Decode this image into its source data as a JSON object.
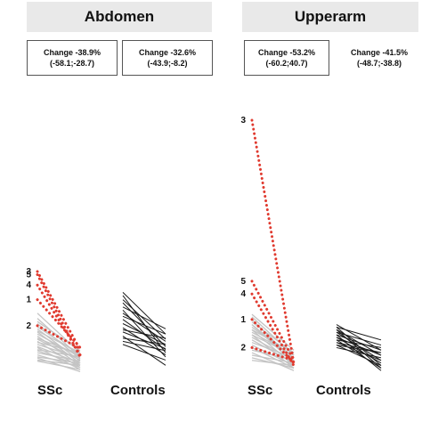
{
  "panels": [
    {
      "title": "Abdomen",
      "change_ssc": {
        "line1": "Change -38.9%",
        "line2": "(-58.1;-28.7)"
      },
      "change_controls": {
        "line1": "Change -32.6%",
        "line2": "(-43.9;-8.2)"
      },
      "group_ssc": "SSc",
      "group_controls": "Controls"
    },
    {
      "title": "Upperarm",
      "change_ssc": {
        "line1": "Change -53.2%",
        "line2": "(-60.2;40.7)"
      },
      "change_controls": {
        "line1": "Change -41.5%",
        "line2": "(-48.7;-38.8)"
      },
      "group_ssc": "SSc",
      "group_controls": "Controls"
    }
  ],
  "colors": {
    "highlight": "#e03a2f",
    "ssc_grey": "#c4c4c4",
    "controls": "#1a1a1a",
    "header_bg": "#e9e9e9"
  },
  "chart_data": [
    {
      "type": "line",
      "panel": "Abdomen",
      "ylim": [
        0,
        100
      ],
      "groups": [
        {
          "name": "SSc",
          "labeled": [
            {
              "label": "3",
              "start": 100,
              "end": 25
            },
            {
              "label": "5",
              "start": 97,
              "end": 18
            },
            {
              "label": "4",
              "start": 87,
              "end": 20
            },
            {
              "label": "1",
              "start": 73,
              "end": 27
            },
            {
              "label": "2",
              "start": 48,
              "end": 26
            }
          ],
          "others": [
            [
              60,
              22
            ],
            [
              55,
              18
            ],
            [
              52,
              24
            ],
            [
              50,
              16
            ],
            [
              47,
              20
            ],
            [
              45,
              14
            ],
            [
              43,
              22
            ],
            [
              42,
              12
            ],
            [
              40,
              18
            ],
            [
              38,
              10
            ],
            [
              36,
              20
            ],
            [
              35,
              15
            ],
            [
              33,
              8
            ],
            [
              32,
              22
            ],
            [
              30,
              17
            ],
            [
              28,
              12
            ],
            [
              27,
              6
            ],
            [
              25,
              18
            ],
            [
              24,
              10
            ],
            [
              22,
              14
            ],
            [
              20,
              8
            ],
            [
              18,
              12
            ],
            [
              17,
              4
            ],
            [
              15,
              10
            ],
            [
              14,
              6
            ]
          ]
        },
        {
          "name": "Controls",
          "pairs": [
            [
              80,
              40
            ],
            [
              77,
              22
            ],
            [
              73,
              35
            ],
            [
              70,
              28
            ],
            [
              66,
              45
            ],
            [
              63,
              18
            ],
            [
              60,
              33
            ],
            [
              57,
              40
            ],
            [
              54,
              25
            ],
            [
              50,
              30
            ],
            [
              46,
              20
            ],
            [
              44,
              36
            ],
            [
              42,
              26
            ],
            [
              38,
              10
            ],
            [
              36,
              30
            ],
            [
              33,
              24
            ],
            [
              30,
              15
            ]
          ]
        }
      ]
    },
    {
      "type": "line",
      "panel": "Upperarm",
      "ylim": [
        0,
        100
      ],
      "groups": [
        {
          "name": "SSc",
          "labeled": [
            {
              "label": "3",
              "start": 100,
              "end": 5
            },
            {
              "label": "5",
              "start": 37,
              "end": 6
            },
            {
              "label": "4",
              "start": 32,
              "end": 4
            },
            {
              "label": "1",
              "start": 22,
              "end": 5
            },
            {
              "label": "2",
              "start": 11,
              "end": 6
            }
          ],
          "others": [
            [
              24,
              10
            ],
            [
              23,
              8
            ],
            [
              22,
              6
            ],
            [
              21,
              9
            ],
            [
              20,
              5
            ],
            [
              19,
              7
            ],
            [
              18,
              4
            ],
            [
              17,
              8
            ],
            [
              16,
              3
            ],
            [
              15,
              6
            ],
            [
              14,
              5
            ],
            [
              13,
              7
            ],
            [
              12,
              4
            ],
            [
              11,
              3
            ],
            [
              10,
              6
            ],
            [
              9,
              2
            ],
            [
              8,
              5
            ],
            [
              7,
              3
            ],
            [
              6,
              4
            ],
            [
              18,
              9
            ],
            [
              20,
              7
            ],
            [
              16,
              8
            ]
          ]
        },
        {
          "name": "Controls",
          "pairs": [
            [
              20,
              10
            ],
            [
              19,
              4
            ],
            [
              19,
              14
            ],
            [
              18,
              8
            ],
            [
              18,
              3
            ],
            [
              17,
              12
            ],
            [
              17,
              6
            ],
            [
              16,
              10
            ],
            [
              16,
              2
            ],
            [
              15,
              8
            ],
            [
              15,
              5
            ],
            [
              14,
              11
            ],
            [
              14,
              3
            ],
            [
              13,
              9
            ],
            [
              13,
              6
            ],
            [
              12,
              4
            ],
            [
              12,
              9
            ],
            [
              11,
              7
            ]
          ]
        }
      ]
    }
  ]
}
